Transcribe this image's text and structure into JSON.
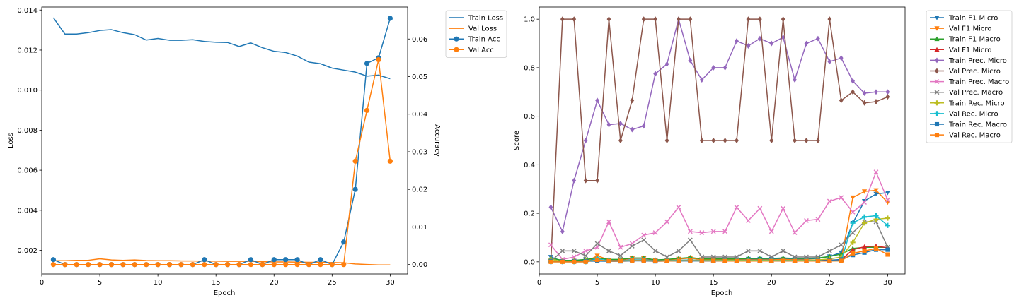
{
  "chart_data": [
    {
      "type": "line",
      "xlabel": "Epoch",
      "ylabel": "Loss",
      "y2label": "Accuracy",
      "xlim": [
        0,
        31.5
      ],
      "ylim": [
        0.00082,
        0.01415
      ],
      "y2lim": [
        -0.0025,
        0.0685
      ],
      "xticks": [
        0,
        5,
        10,
        15,
        20,
        25,
        30
      ],
      "yticks": [
        0.002,
        0.004,
        0.006,
        0.008,
        0.01,
        0.012,
        0.014
      ],
      "ytick_labels": [
        "0.002",
        "0.004",
        "0.006",
        "0.008",
        "0.010",
        "0.012",
        "0.014"
      ],
      "y2ticks": [
        0,
        0.01,
        0.02,
        0.03,
        0.04,
        0.05,
        0.06
      ],
      "y2tick_labels": [
        "0.00",
        "0.01",
        "0.02",
        "0.03",
        "0.04",
        "0.05",
        "0.06"
      ],
      "legend_position": "outside-right-top",
      "grid": false,
      "x": [
        1,
        2,
        3,
        4,
        5,
        6,
        7,
        8,
        9,
        10,
        11,
        12,
        13,
        14,
        15,
        16,
        17,
        18,
        19,
        20,
        21,
        22,
        23,
        24,
        25,
        26,
        27,
        28,
        29,
        30
      ],
      "series": [
        {
          "name": "Train Loss",
          "axis": "left",
          "color": "#1f77b4",
          "marker": "none",
          "values": [
            0.01362,
            0.0128,
            0.0128,
            0.01287,
            0.01298,
            0.01302,
            0.01287,
            0.01277,
            0.0125,
            0.01258,
            0.01249,
            0.01249,
            0.01252,
            0.01243,
            0.01239,
            0.01238,
            0.01218,
            0.01236,
            0.01212,
            0.01194,
            0.01188,
            0.0117,
            0.0114,
            0.01132,
            0.0111,
            0.011,
            0.0109,
            0.0107,
            0.01075,
            0.01057
          ]
        },
        {
          "name": "Val Loss",
          "axis": "left",
          "color": "#ff7f0e",
          "marker": "none",
          "values": [
            0.00148,
            0.00148,
            0.0015,
            0.0015,
            0.00158,
            0.00152,
            0.0015,
            0.00152,
            0.00149,
            0.00148,
            0.00148,
            0.00147,
            0.00147,
            0.00146,
            0.00146,
            0.00145,
            0.00145,
            0.00145,
            0.00143,
            0.00142,
            0.00142,
            0.00141,
            0.0014,
            0.0014,
            0.00139,
            0.00138,
            0.00132,
            0.00129,
            0.00127,
            0.00127
          ]
        },
        {
          "name": "Train Acc",
          "axis": "right",
          "color": "#1f77b4",
          "marker": "circle",
          "values": [
            0.0013,
            0,
            0,
            0,
            0,
            0,
            0,
            0,
            0,
            0,
            0,
            0,
            0,
            0.0013,
            0,
            0,
            0,
            0.0013,
            0,
            0.0013,
            0.0013,
            0.0013,
            0,
            0.0013,
            0,
            0.006,
            0.02,
            0.0535,
            0.055,
            0.0655
          ]
        },
        {
          "name": "Val Acc",
          "axis": "right",
          "color": "#ff7f0e",
          "marker": "circle",
          "values": [
            0,
            0,
            0,
            0,
            0,
            0,
            0,
            0,
            0,
            0,
            0,
            0,
            0,
            0,
            0,
            0,
            0,
            0,
            0,
            0,
            0,
            0,
            0,
            0,
            0,
            0,
            0.0275,
            0.041,
            0.0545,
            0.0275
          ]
        }
      ]
    },
    {
      "type": "line",
      "xlabel": "Epoch",
      "ylabel": "Score",
      "xlim": [
        0,
        31.5
      ],
      "ylim": [
        -0.05,
        1.05
      ],
      "xticks": [
        0,
        5,
        10,
        15,
        20,
        25,
        30
      ],
      "yticks": [
        0,
        0.2,
        0.4,
        0.6,
        0.8,
        1.0
      ],
      "ytick_labels": [
        "0.0",
        "0.2",
        "0.4",
        "0.6",
        "0.8",
        "1.0"
      ],
      "legend_position": "outside-right-top",
      "grid": false,
      "x": [
        1,
        2,
        3,
        4,
        5,
        6,
        7,
        8,
        9,
        10,
        11,
        12,
        13,
        14,
        15,
        16,
        17,
        18,
        19,
        20,
        21,
        22,
        23,
        24,
        25,
        26,
        27,
        28,
        29,
        30
      ],
      "series": [
        {
          "name": "Train F1 Micro",
          "color": "#1f77b4",
          "marker": "triangle-down",
          "values": [
            0.02,
            0.003,
            0.003,
            0.008,
            0.01,
            0.006,
            0.008,
            0.014,
            0.014,
            0.006,
            0.008,
            0.012,
            0.016,
            0.01,
            0.01,
            0.01,
            0.01,
            0.012,
            0.012,
            0.012,
            0.012,
            0.012,
            0.012,
            0.014,
            0.022,
            0.038,
            0.16,
            0.25,
            0.28,
            0.285
          ]
        },
        {
          "name": "Val F1 Micro",
          "color": "#ff7f0e",
          "marker": "triangle-down",
          "values": [
            0,
            0,
            0,
            0,
            0.025,
            0.008,
            0.008,
            0.015,
            0.015,
            0.008,
            0.008,
            0.012,
            0.015,
            0.01,
            0.01,
            0.008,
            0.008,
            0.008,
            0.008,
            0.008,
            0.01,
            0.008,
            0.008,
            0.008,
            0.008,
            0.008,
            0.265,
            0.29,
            0.295,
            0.245
          ]
        },
        {
          "name": "Train F1 Macro",
          "color": "#2ca02c",
          "marker": "triangle-up",
          "values": [
            0.015,
            0.006,
            0.006,
            0.01,
            0.016,
            0.01,
            0.01,
            0.016,
            0.016,
            0.008,
            0.01,
            0.014,
            0.018,
            0.012,
            0.012,
            0.012,
            0.012,
            0.014,
            0.014,
            0.014,
            0.016,
            0.014,
            0.014,
            0.016,
            0.022,
            0.032,
            0.055,
            0.06,
            0.06,
            0.06
          ]
        },
        {
          "name": "Val F1 Micro",
          "color": "#d62728",
          "marker": "triangle-up",
          "values": [
            0.003,
            0.003,
            0.003,
            0.003,
            0.008,
            0.005,
            0.005,
            0.008,
            0.008,
            0.005,
            0.005,
            0.006,
            0.008,
            0.006,
            0.006,
            0.006,
            0.006,
            0.006,
            0.006,
            0.006,
            0.006,
            0.006,
            0.006,
            0.006,
            0.006,
            0.008,
            0.05,
            0.062,
            0.065,
            0.058
          ]
        },
        {
          "name": "Train Prec. Micro",
          "color": "#9467bd",
          "marker": "diamond",
          "values": [
            0.225,
            0.125,
            0.335,
            0.5,
            0.665,
            0.565,
            0.57,
            0.545,
            0.56,
            0.775,
            0.815,
            1.0,
            0.83,
            0.75,
            0.8,
            0.8,
            0.91,
            0.89,
            0.92,
            0.9,
            0.925,
            0.75,
            0.9,
            0.92,
            0.825,
            0.84,
            0.745,
            0.695,
            0.7,
            0.7
          ]
        },
        {
          "name": "Val Prec. Micro",
          "color": "#8c564b",
          "marker": "diamond",
          "values": [
            0,
            1.0,
            1.0,
            0.335,
            0.335,
            1.0,
            0.5,
            0.665,
            1.0,
            1.0,
            0.5,
            1.0,
            1.0,
            0.5,
            0.5,
            0.5,
            0.5,
            1.0,
            1.0,
            0.5,
            1.0,
            0.5,
            0.5,
            0.5,
            1.0,
            0.665,
            0.7,
            0.655,
            0.66,
            0.68
          ]
        },
        {
          "name": "Train Prec. Macro",
          "color": "#e377c2",
          "marker": "x",
          "values": [
            0.07,
            0.01,
            0.02,
            0.045,
            0.06,
            0.165,
            0.06,
            0.075,
            0.11,
            0.12,
            0.165,
            0.225,
            0.125,
            0.12,
            0.125,
            0.125,
            0.225,
            0.17,
            0.22,
            0.125,
            0.22,
            0.12,
            0.17,
            0.175,
            0.25,
            0.265,
            0.205,
            0.245,
            0.37,
            0.255
          ]
        },
        {
          "name": "Val Prec. Macro",
          "color": "#7f7f7f",
          "marker": "x",
          "values": [
            0.002,
            0.045,
            0.045,
            0.025,
            0.075,
            0.045,
            0.025,
            0.065,
            0.09,
            0.045,
            0.02,
            0.045,
            0.09,
            0.02,
            0.02,
            0.02,
            0.02,
            0.045,
            0.045,
            0.02,
            0.045,
            0.02,
            0.02,
            0.02,
            0.045,
            0.07,
            0.12,
            0.165,
            0.165,
            0.06
          ]
        },
        {
          "name": "Train Rec. Micro",
          "color": "#bcbd22",
          "marker": "plus",
          "values": [
            0.01,
            0.002,
            0.002,
            0.004,
            0.006,
            0.004,
            0.004,
            0.008,
            0.008,
            0.004,
            0.005,
            0.006,
            0.008,
            0.006,
            0.006,
            0.006,
            0.006,
            0.006,
            0.006,
            0.006,
            0.006,
            0.006,
            0.006,
            0.008,
            0.012,
            0.02,
            0.08,
            0.16,
            0.175,
            0.18
          ]
        },
        {
          "name": "Val Rec. Micro",
          "color": "#17becf",
          "marker": "plus",
          "values": [
            0,
            0,
            0,
            0,
            0.012,
            0.004,
            0.004,
            0.008,
            0.008,
            0.004,
            0.004,
            0.006,
            0.008,
            0.005,
            0.005,
            0.004,
            0.004,
            0.004,
            0.004,
            0.004,
            0.005,
            0.004,
            0.004,
            0.004,
            0.004,
            0.004,
            0.16,
            0.185,
            0.19,
            0.15
          ]
        },
        {
          "name": "Train Rec. Macro",
          "color": "#1f77b4",
          "marker": "square",
          "values": [
            0.003,
            0.001,
            0.001,
            0.002,
            0.003,
            0.002,
            0.002,
            0.004,
            0.004,
            0.002,
            0.003,
            0.003,
            0.004,
            0.003,
            0.003,
            0.003,
            0.003,
            0.003,
            0.003,
            0.003,
            0.003,
            0.003,
            0.003,
            0.004,
            0.006,
            0.01,
            0.028,
            0.038,
            0.05,
            0.05
          ]
        },
        {
          "name": "Val Rec. Macro",
          "color": "#ff7f0e",
          "marker": "square",
          "values": [
            0,
            0,
            0,
            0,
            0.008,
            0.003,
            0.003,
            0.005,
            0.005,
            0.003,
            0.003,
            0.004,
            0.005,
            0.004,
            0.004,
            0.003,
            0.003,
            0.003,
            0.003,
            0.003,
            0.004,
            0.003,
            0.003,
            0.003,
            0.003,
            0.004,
            0.035,
            0.045,
            0.055,
            0.03
          ]
        }
      ]
    }
  ]
}
